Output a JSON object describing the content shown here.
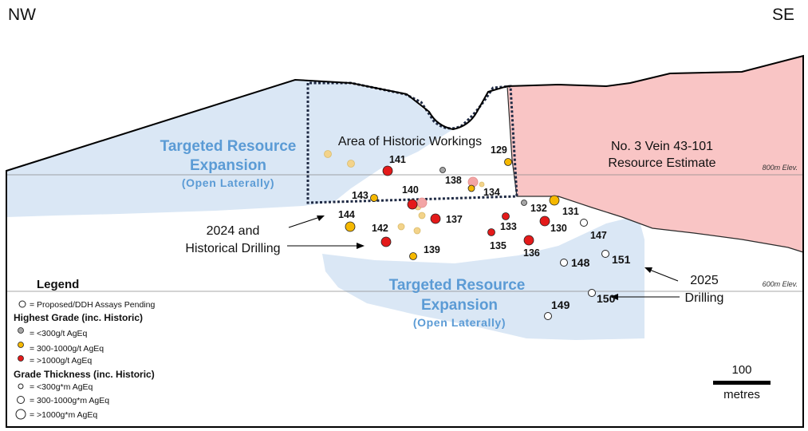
{
  "directions": {
    "left": "NW",
    "right": "SE"
  },
  "zones": {
    "target_upper": {
      "line1": "Targeted Resource",
      "line2": "Expansion",
      "sub": "(Open Laterally)"
    },
    "target_lower": {
      "line1": "Targeted Resource",
      "line2": "Expansion",
      "sub": "(Open Laterally)"
    },
    "historic": "Area of Historic Workings",
    "resource": {
      "line1": "No. 3 Vein 43-101",
      "line2": "Resource Estimate"
    }
  },
  "elevations": {
    "upper": "800m Elev.",
    "lower": "600m Elev."
  },
  "annotations": {
    "drilling_2024": {
      "line1": "2024 and",
      "line2": "Historical  Drilling"
    },
    "drilling_2025": {
      "line1": "2025",
      "line2": "Drilling"
    }
  },
  "drill_holes": [
    {
      "id": "141",
      "grade": ">1000g/t AgEq"
    },
    {
      "id": "129",
      "grade": "300-1000g/t AgEq"
    },
    {
      "id": "138",
      "grade": "<300g/t AgEq"
    },
    {
      "id": "143",
      "grade": "300-1000g/t AgEq"
    },
    {
      "id": "140",
      "grade": ">1000g/t AgEq"
    },
    {
      "id": "134",
      "grade": "300-1000g/t AgEq"
    },
    {
      "id": "132",
      "grade": "<300g/t AgEq"
    },
    {
      "id": "131",
      "grade": "300-1000g/t AgEq"
    },
    {
      "id": "144",
      "grade": "300-1000g/t AgEq"
    },
    {
      "id": "137",
      "grade": ">1000g/t AgEq"
    },
    {
      "id": "133",
      "grade": ">1000g/t AgEq"
    },
    {
      "id": "130",
      "grade": ">1000g/t AgEq"
    },
    {
      "id": "147",
      "grade": "Proposed/DDH Assays Pending"
    },
    {
      "id": "142",
      "grade": ">1000g/t AgEq"
    },
    {
      "id": "135",
      "grade": ">1000g/t AgEq"
    },
    {
      "id": "136",
      "grade": ">1000g/t AgEq"
    },
    {
      "id": "139",
      "grade": "300-1000g/t AgEq"
    },
    {
      "id": "148",
      "grade": "Proposed/DDH Assays Pending"
    },
    {
      "id": "151",
      "grade": "Proposed/DDH Assays Pending"
    },
    {
      "id": "150",
      "grade": "Proposed/DDH Assays Pending"
    },
    {
      "id": "149",
      "grade": "Proposed/DDH Assays Pending"
    }
  ],
  "legend": {
    "title": "Legend",
    "pending": "= Proposed/DDH Assays Pending",
    "grade_title": "Highest Grade (inc. Historic)",
    "grade_items": [
      "= <300g/t AgEq",
      "= 300-1000g/t AgEq",
      "= >1000g/t AgEq"
    ],
    "thickness_title": "Grade Thickness (inc. Historic)",
    "thickness_items": [
      "= <300g*m AgEq",
      "= 300-1000g*m AgEq",
      "= >1000g*m AgEq"
    ]
  },
  "scale_bar": {
    "value": "100",
    "unit": "metres"
  },
  "colors": {
    "target_fill": "#dae7f5",
    "resource_fill": "#f9c5c5",
    "grey_dot": "#a6a6a6",
    "orange_dot": "#f5b800",
    "red_dot": "#e41a1a",
    "faded_orange": "#f3d38a",
    "faded_red": "#f3a5a5",
    "label_blue": "#5b9bd5"
  }
}
